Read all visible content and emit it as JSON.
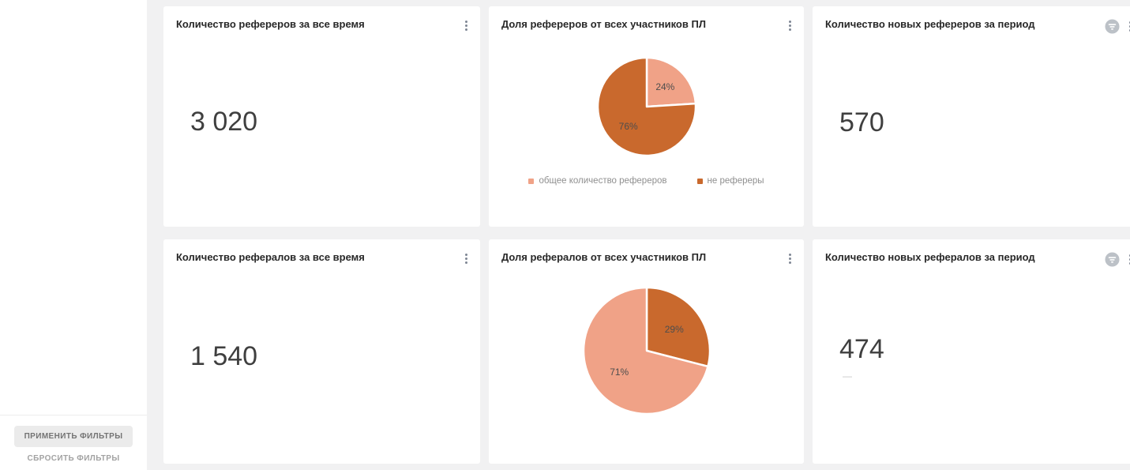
{
  "app": {
    "background": "#f1f1f2",
    "sidebar_background": "#ffffff",
    "card_background": "#ffffff",
    "accent_dark_orange": "#c9692d",
    "accent_light_salmon": "#f0a287"
  },
  "sidebar": {
    "apply_label": "ПРИМЕНИТЬ ФИЛЬТРЫ",
    "reset_label": "СБРОСИТЬ ФИЛЬТРЫ"
  },
  "cards": [
    {
      "title": "Количество рефереров за все время",
      "kind": "indicator",
      "value": "3 020"
    },
    {
      "title": "Доля рефереров от всех участников ПЛ",
      "kind": "pie",
      "pie": {
        "slices": [
          {
            "label": "общее количество рефереров",
            "pct": 24,
            "color": "#f0a287",
            "data_label": "24%"
          },
          {
            "label": "не рефереры",
            "pct": 76,
            "color": "#c9692d",
            "data_label": "76%"
          }
        ],
        "show_legend": true
      }
    },
    {
      "title": "Количество новых рефереров за период",
      "kind": "indicator",
      "value": "570",
      "has_filter_icon": true
    },
    {
      "title": "Количество рефералов за все время",
      "kind": "indicator",
      "value": "1 540"
    },
    {
      "title": "Доля рефералов от всех участников ПЛ",
      "kind": "pie",
      "pie": {
        "slices": [
          {
            "pct": 29,
            "color": "#c9692d",
            "data_label": "29%"
          },
          {
            "pct": 71,
            "color": "#f0a287",
            "data_label": "71%"
          }
        ],
        "show_legend": false
      }
    },
    {
      "title": "Количество новых рефералов за период",
      "kind": "indicator",
      "value": "474",
      "value_secondary": "—",
      "has_filter_icon": true
    }
  ],
  "chart_data": [
    {
      "type": "pie",
      "title": "Доля рефереров от всех участников ПЛ",
      "labels": [
        "общее количество рефереров",
        "не рефереры"
      ],
      "values": [
        24,
        76
      ],
      "unit": "%",
      "colors": [
        "#f0a287",
        "#c9692d"
      ],
      "data_labels": [
        "24%",
        "76%"
      ],
      "legend_position": "bottom",
      "start_angle": "12-o'clock",
      "direction": "clockwise"
    },
    {
      "type": "pie",
      "title": "Доля рефералов от всех участников ПЛ",
      "values": [
        29,
        71
      ],
      "unit": "%",
      "colors": [
        "#c9692d",
        "#f0a287"
      ],
      "data_labels": [
        "29%",
        "71%"
      ],
      "legend_position": "none",
      "start_angle": "12-o'clock",
      "direction": "clockwise"
    }
  ]
}
